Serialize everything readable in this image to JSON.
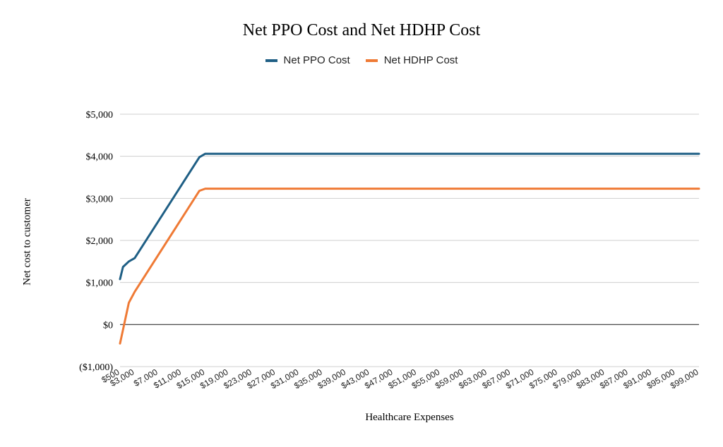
{
  "chart_data": {
    "type": "line",
    "title": "Net PPO Cost and  Net HDHP Cost",
    "xlabel": "Healthcare Expenses",
    "ylabel": "Net cost to customer",
    "ylim": [
      -1000,
      5000
    ],
    "yticks": [
      {
        "value": 5000,
        "label": "$5,000"
      },
      {
        "value": 4000,
        "label": "$4,000"
      },
      {
        "value": 3000,
        "label": "$3,000"
      },
      {
        "value": 2000,
        "label": "$2,000"
      },
      {
        "value": 1000,
        "label": "$1,000"
      },
      {
        "value": 0,
        "label": "$0"
      },
      {
        "value": -1000,
        "label": "($1,000)"
      }
    ],
    "xlim": [
      500,
      99000
    ],
    "xticks": [
      {
        "value": 500,
        "label": "$500"
      },
      {
        "value": 3000,
        "label": "$3,000"
      },
      {
        "value": 7000,
        "label": "$7,000"
      },
      {
        "value": 11000,
        "label": "$11,000"
      },
      {
        "value": 15000,
        "label": "$15,000"
      },
      {
        "value": 19000,
        "label": "$19,000"
      },
      {
        "value": 23000,
        "label": "$23,000"
      },
      {
        "value": 27000,
        "label": "$27,000"
      },
      {
        "value": 31000,
        "label": "$31,000"
      },
      {
        "value": 35000,
        "label": "$35,000"
      },
      {
        "value": 39000,
        "label": "$39,000"
      },
      {
        "value": 43000,
        "label": "$43,000"
      },
      {
        "value": 47000,
        "label": "$47,000"
      },
      {
        "value": 51000,
        "label": "$51,000"
      },
      {
        "value": 55000,
        "label": "$55,000"
      },
      {
        "value": 59000,
        "label": "$59,000"
      },
      {
        "value": 63000,
        "label": "$63,000"
      },
      {
        "value": 67000,
        "label": "$67,000"
      },
      {
        "value": 71000,
        "label": "$71,000"
      },
      {
        "value": 75000,
        "label": "$75,000"
      },
      {
        "value": 79000,
        "label": "$79,000"
      },
      {
        "value": 83000,
        "label": "$83,000"
      },
      {
        "value": 87000,
        "label": "$87,000"
      },
      {
        "value": 91000,
        "label": "$91,000"
      },
      {
        "value": 95000,
        "label": "$95,000"
      },
      {
        "value": 99000,
        "label": "$99,000"
      }
    ],
    "grid": true,
    "legend_position": "top-center",
    "series": [
      {
        "name": "Net PPO Cost",
        "color": "#1f5f85",
        "points": [
          [
            500,
            1080
          ],
          [
            1000,
            1370
          ],
          [
            2000,
            1500
          ],
          [
            3000,
            1580
          ],
          [
            14000,
            3980
          ],
          [
            15000,
            4060
          ],
          [
            99000,
            4060
          ]
        ]
      },
      {
        "name": "Net HDHP Cost",
        "color": "#ef7a35",
        "points": [
          [
            500,
            -450
          ],
          [
            2000,
            520
          ],
          [
            3000,
            780
          ],
          [
            14000,
            3180
          ],
          [
            15000,
            3230
          ],
          [
            99000,
            3230
          ]
        ]
      }
    ]
  }
}
